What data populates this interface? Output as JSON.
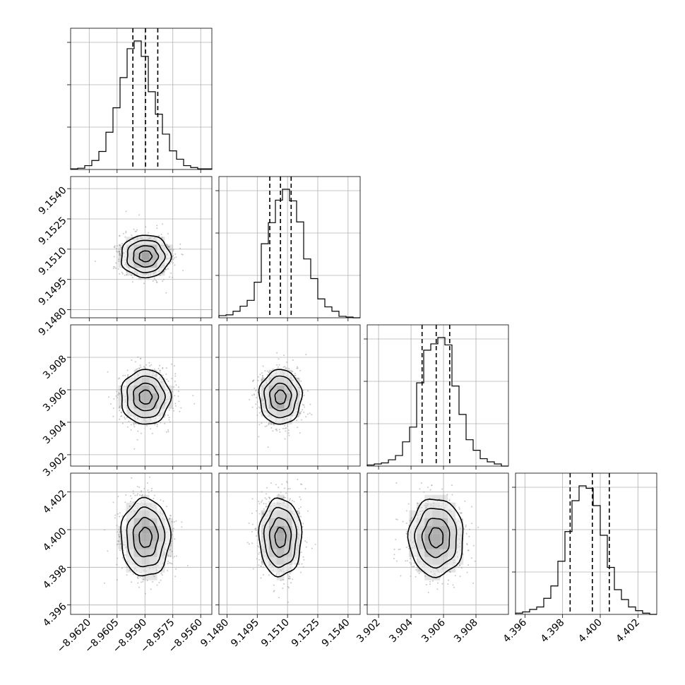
{
  "chart_data": {
    "type": "corner",
    "parameters": [
      {
        "range": [
          -8.963,
          -8.9554
        ],
        "ticks": [
          -8.962,
          -8.9605,
          -8.959,
          -8.9575,
          -8.956
        ],
        "tick_labels": [
          "−8.9620",
          "−8.9605",
          "−8.9590",
          "−8.9575",
          "−8.9560"
        ],
        "quantiles": [
          -8.95965,
          -8.95897,
          -8.95831
        ],
        "hist_counts": [
          1,
          2,
          6,
          14,
          28,
          58,
          96,
          143,
          188,
          200,
          176,
          121,
          86,
          55,
          29,
          16,
          6,
          3,
          1,
          1
        ]
      },
      {
        "range": [
          9.1476,
          9.1546
        ],
        "ticks": [
          9.148,
          9.1495,
          9.151,
          9.1525,
          9.154
        ],
        "tick_labels": [
          "9.1480",
          "9.1495",
          "9.1510",
          "9.1525",
          "9.1540"
        ],
        "quantiles": [
          9.15012,
          9.15065,
          9.15118
        ],
        "hist_counts": [
          3,
          4,
          9,
          16,
          24,
          49,
          102,
          131,
          162,
          177,
          161,
          132,
          81,
          54,
          26,
          15,
          9,
          2,
          1,
          0
        ]
      },
      {
        "range": [
          3.9013,
          3.91
        ],
        "ticks": [
          3.902,
          3.904,
          3.906,
          3.908
        ],
        "tick_labels": [
          "3.902",
          "3.904",
          "3.906",
          "3.908"
        ],
        "quantiles": [
          3.90468,
          3.90555,
          3.90638
        ],
        "hist_counts": [
          1,
          2,
          3,
          6,
          10,
          23,
          37,
          79,
          110,
          116,
          122,
          115,
          76,
          49,
          25,
          15,
          7,
          4,
          2,
          0
        ]
      },
      {
        "range": [
          4.3955,
          4.403
        ],
        "ticks": [
          4.396,
          4.398,
          4.4,
          4.402
        ],
        "tick_labels": [
          "4.396",
          "4.398",
          "4.400",
          "4.402"
        ],
        "quantiles": [
          4.3984,
          4.39958,
          4.40048
        ],
        "hist_counts": [
          1,
          2,
          4,
          6,
          13,
          23,
          43,
          67,
          92,
          104,
          102,
          88,
          64,
          38,
          20,
          12,
          6,
          3,
          1,
          0
        ]
      }
    ],
    "correlations": [
      [
        1,
        0,
        0,
        0
      ],
      [
        0,
        1,
        0,
        0
      ],
      [
        0,
        0,
        1,
        0
      ],
      [
        0,
        0,
        0,
        1
      ]
    ],
    "contour_levels": [
      0.12,
      0.39,
      0.68,
      0.86
    ],
    "grid": true,
    "colors": {
      "line": "#000000",
      "grid": "#b0b0b0",
      "points": "#9a9a9a",
      "density": "#000000"
    }
  }
}
